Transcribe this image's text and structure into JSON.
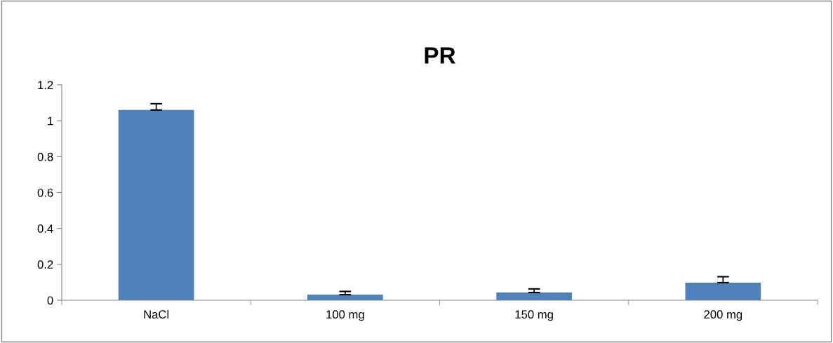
{
  "chart_data": {
    "type": "bar",
    "title": "PR",
    "categories": [
      "NaCl",
      "100 mg",
      "150 mg",
      "200 mg"
    ],
    "values": [
      1.06,
      0.031,
      0.043,
      0.098
    ],
    "errors": [
      [
        1.06,
        1.095
      ],
      [
        0.031,
        0.049
      ],
      [
        0.043,
        0.063
      ],
      [
        0.098,
        0.131
      ]
    ],
    "color": "#4f81bd",
    "ylim": [
      0,
      1.2
    ],
    "yticks": [
      0,
      0.2,
      0.4,
      0.6,
      0.8,
      1,
      1.2
    ],
    "grid": false,
    "legend": false
  }
}
